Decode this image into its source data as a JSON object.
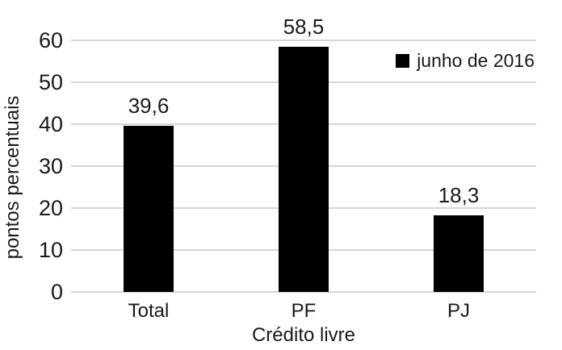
{
  "chart_data": {
    "type": "bar",
    "categories": [
      "Total",
      "PF",
      "PJ"
    ],
    "series": [
      {
        "name": "junho de 2016",
        "values": [
          39.6,
          58.5,
          18.3
        ]
      }
    ],
    "value_labels": [
      "39,6",
      "58,5",
      "18,3"
    ],
    "title": "",
    "xlabel": "Crédito livre",
    "ylabel": "pontos percentuais",
    "ylim": [
      0,
      60
    ],
    "yticks": [
      0,
      10,
      20,
      30,
      40,
      50,
      60
    ],
    "grid": true,
    "legend_position": "top-right",
    "colors": {
      "bar": "#000000",
      "gridline": "#d6d6d6",
      "text": "#1a1a1a",
      "background": "#ffffff"
    }
  },
  "legend": {
    "label": "junho de 2016",
    "swatch": "black-square-icon"
  }
}
